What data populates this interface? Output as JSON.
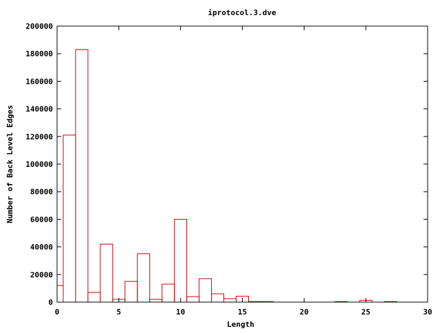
{
  "chart_data": {
    "type": "bar",
    "title": "iprotocol.3.dve",
    "xlabel": "Length",
    "ylabel": "Number of Back Level Edges",
    "xlim": [
      0,
      30
    ],
    "ylim": [
      0,
      200000
    ],
    "xticks": [
      0,
      5,
      10,
      15,
      20,
      25,
      30
    ],
    "yticks": [
      0,
      20000,
      40000,
      60000,
      80000,
      100000,
      120000,
      140000,
      160000,
      180000,
      200000
    ],
    "grid": false,
    "bar_color": "#cc0000",
    "bar_width": 1,
    "x": [
      0,
      1,
      2,
      3,
      4,
      5,
      6,
      7,
      8,
      9,
      10,
      11,
      12,
      13,
      14,
      15,
      16,
      17,
      23,
      25,
      27
    ],
    "values": [
      12000,
      121000,
      183000,
      7000,
      42000,
      2000,
      15000,
      35000,
      2000,
      13000,
      60000,
      4000,
      17000,
      6000,
      2500,
      4300,
      400,
      400,
      400,
      1300,
      400
    ]
  }
}
